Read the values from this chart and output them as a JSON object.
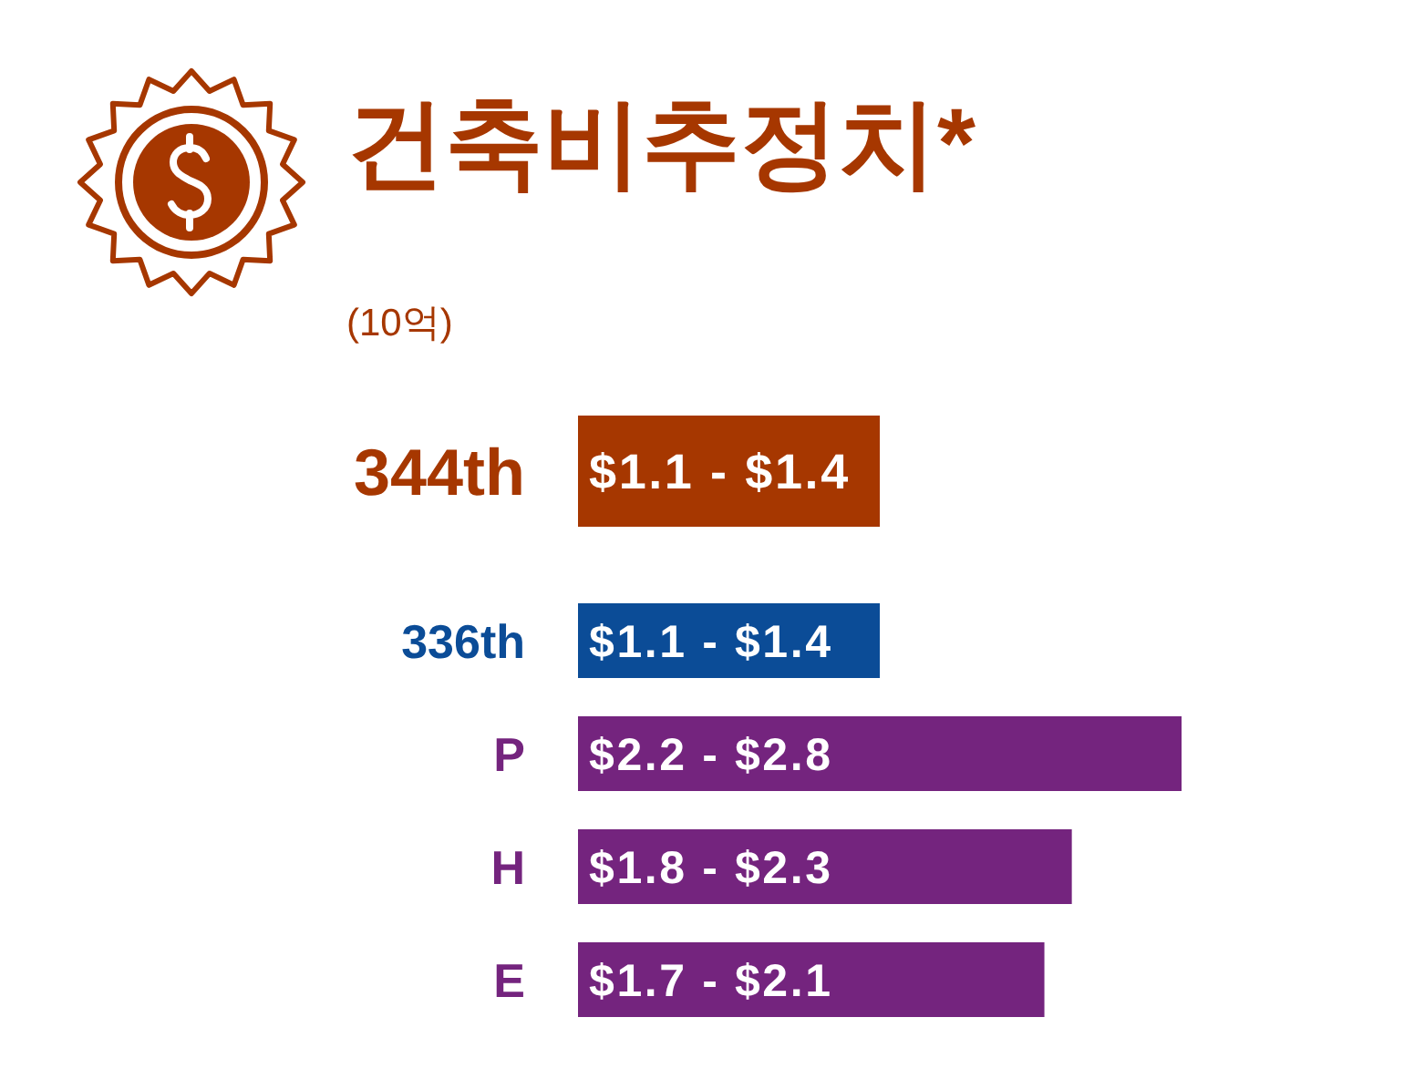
{
  "chart_data": {
    "type": "bar",
    "orientation": "horizontal",
    "title": "건축비추정치*",
    "subtitle": "(10억)",
    "categories": [
      "344th",
      "336th",
      "P",
      "H",
      "E"
    ],
    "values": [
      1.1,
      1.1,
      2.2,
      1.8,
      1.7
    ],
    "colors": [
      "#a63700",
      "#0b4c97",
      "#74247e",
      "#74247e",
      "#74247e"
    ],
    "value_labels": [
      "$1.1 - $1.4",
      "$1.1 - $1.4",
      "$2.2 - $2.8",
      "$1.8 - $2.3",
      "$1.7 - $2.1"
    ]
  }
}
